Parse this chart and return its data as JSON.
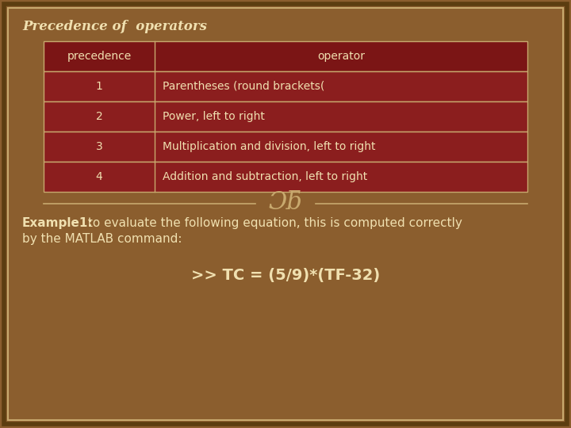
{
  "title": "Precedence of  operators",
  "bg_color": "#8B5E2E",
  "border_outer_color": "#5C3D10",
  "border_inner_color": "#C8A96E",
  "table_header_bg": "#7B1515",
  "table_row_bg": "#8B1E1E",
  "table_border_color": "#C8A96E",
  "table_text_color": "#F0E0B0",
  "title_color": "#F0E0B0",
  "header_col1": "precedence",
  "header_col2": "operator",
  "rows": [
    [
      "1",
      "Parentheses (round brackets("
    ],
    [
      "2",
      "Power, left to right"
    ],
    [
      "3",
      "Multiplication and division, left to right"
    ],
    [
      "4",
      "Addition and subtraction, left to right"
    ]
  ],
  "divider_color": "#C8A96E",
  "symbol_color": "#C8A96E",
  "example_bold": "Example1:",
  "example_text": " to evaluate the following equation, this is computed correctly\nby the MATLAB command:",
  "command_text": ">> TC = (5/9)*(TF-32)",
  "text_color": "#F0E0B0"
}
